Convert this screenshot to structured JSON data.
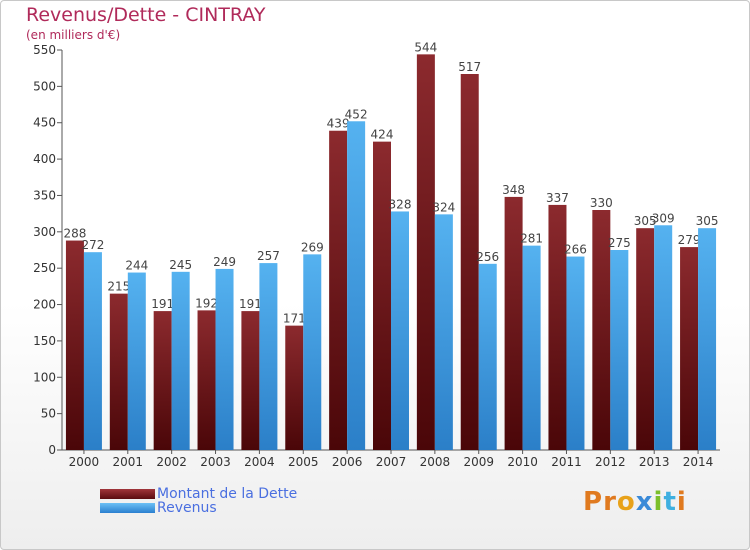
{
  "title": "Revenus/Dette - CINTRAY",
  "subtitle": "(en milliers d'€)",
  "logo_text": "Proxiti",
  "colors": {
    "dette": "#7a1a1e",
    "revenus": "#3d9be0",
    "title": "#b02a5a",
    "legend_text": "#4a6fe0"
  },
  "chart_data": {
    "type": "bar",
    "categories": [
      "2000",
      "2001",
      "2002",
      "2003",
      "2004",
      "2005",
      "2006",
      "2007",
      "2008",
      "2009",
      "2010",
      "2011",
      "2012",
      "2013",
      "2014"
    ],
    "series": [
      {
        "name": "Montant de la Dette",
        "values": [
          288,
          215,
          191,
          192,
          191,
          171,
          439,
          424,
          544,
          517,
          348,
          337,
          330,
          305,
          279
        ]
      },
      {
        "name": "Revenus",
        "values": [
          272,
          244,
          245,
          249,
          257,
          269,
          452,
          328,
          324,
          256,
          281,
          266,
          275,
          309,
          305
        ]
      }
    ],
    "ylim": [
      0,
      550
    ],
    "yticks": [
      0,
      50,
      100,
      150,
      200,
      250,
      300,
      350,
      400,
      450,
      500,
      550
    ],
    "grid": false,
    "legend_position": "bottom-left"
  }
}
